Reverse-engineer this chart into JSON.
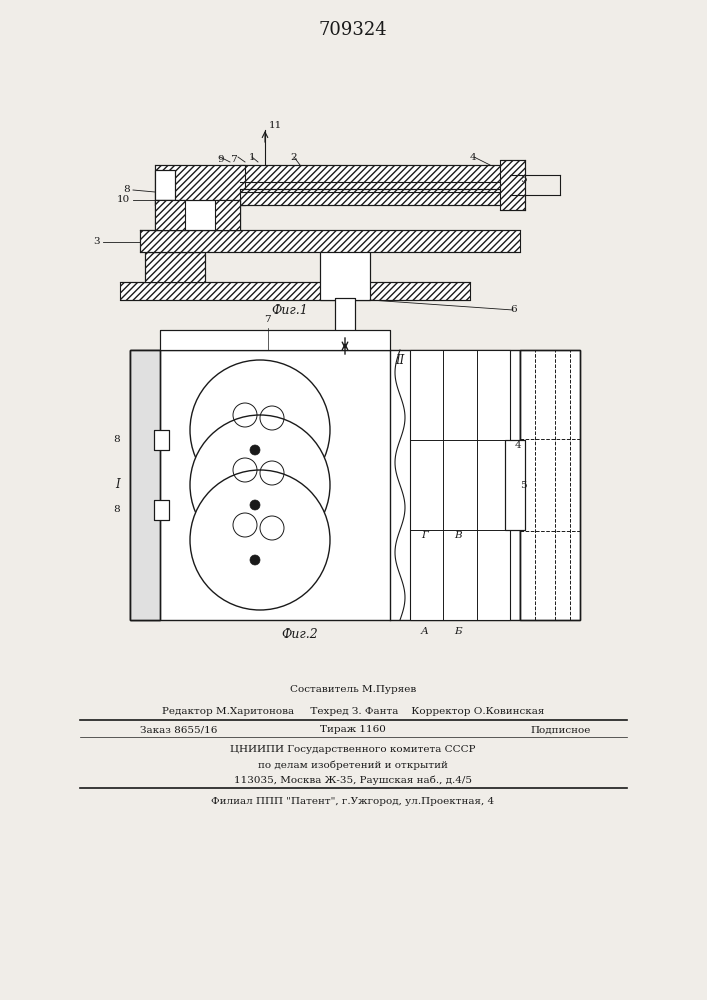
{
  "title": "709324",
  "fig1_label": "Фиг.1",
  "fig2_label": "Фиг.2",
  "footer": {
    "composer": "Составитель М.Пуряев",
    "editor": "Редактор М.Харитонова",
    "techred": "Техред З. Фанта",
    "corrector": "Корректор О.Ковинская",
    "order": "Заказ 8655/16",
    "circulation": "Тираж 1160",
    "subscription": "Подписное",
    "org_line1": "ЦНИИПИ Государственного комитета СССР",
    "org_line2": "по делам изобретений и открытий",
    "org_line3": "113035, Москва Ж-35, Раушская наб., д.4/5",
    "branch": "Филиал ППП \"Патент\", г.Ужгород, ул.Проектная, 4"
  },
  "bg_color": "#f0ede8",
  "line_color": "#1a1a1a",
  "hatch_color": "#1a1a1a"
}
